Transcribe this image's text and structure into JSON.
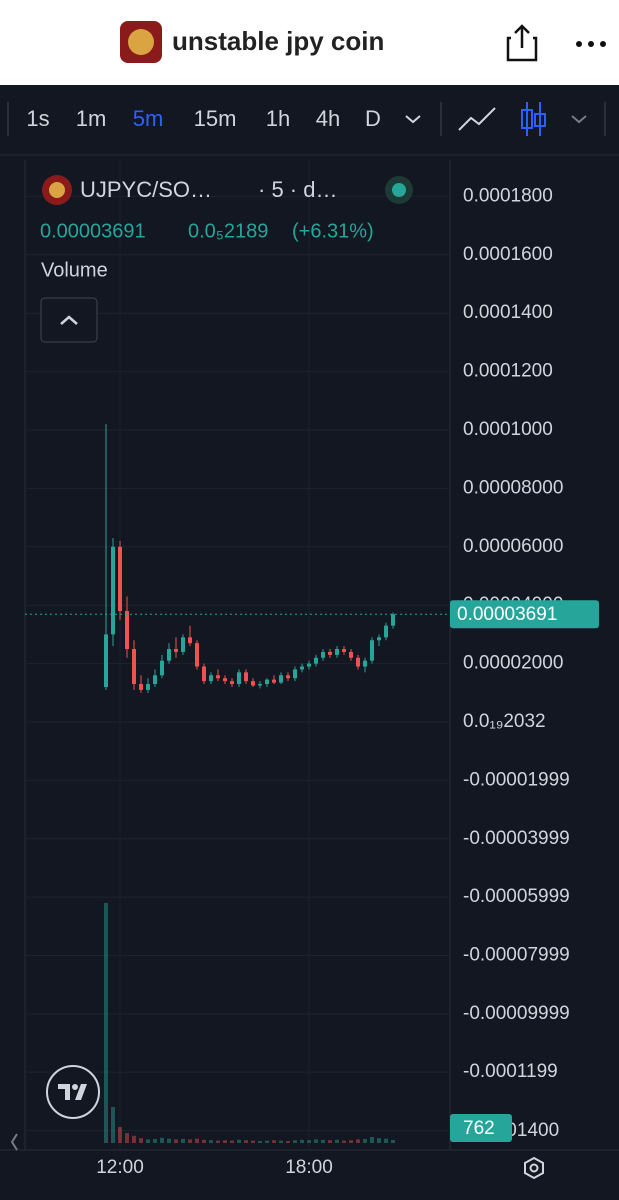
{
  "header": {
    "title": "unstable jpy coin"
  },
  "toolbar": {
    "intervals": [
      "1s",
      "1m",
      "5m",
      "15m",
      "1h",
      "4h",
      "D"
    ],
    "active": 2
  },
  "chart_data": {
    "type": "candlestick",
    "symbol": "UJPYC/SO…",
    "interval_label": "· 5 · d…",
    "change": "0.0₅2189",
    "change_pct": "(+6.31%)",
    "volume_title": "Volume",
    "last_price": 3.691e-05,
    "up_color": "#26a69a",
    "down_color": "#ef5350",
    "open": [
      1.2e-05,
      3e-05,
      6e-05,
      3.8e-05,
      2.5e-05,
      1.3e-05,
      1.1e-05,
      1.3e-05,
      1.6e-05,
      2.1e-05,
      2.5e-05,
      2.4e-05,
      2.9e-05,
      2.7e-05,
      1.9e-05,
      1.4e-05,
      1.6e-05,
      1.5e-05,
      1.4e-05,
      1.3e-05,
      1.7e-05,
      1.4e-05,
      1.25e-05,
      1.3e-05,
      1.45e-05,
      1.35e-05,
      1.6e-05,
      1.5e-05,
      1.8e-05,
      1.9e-05,
      2e-05,
      2.2e-05,
      2.4e-05,
      2.3e-05,
      2.5e-05,
      2.4e-05,
      2.2e-05,
      1.9e-05,
      2.1e-05,
      2.8e-05,
      2.9e-05,
      3.3e-05
    ],
    "high": [
      0.000102,
      6.3e-05,
      6.2e-05,
      4.3e-05,
      2.8e-05,
      1.6e-05,
      1.5e-05,
      1.8e-05,
      2.3e-05,
      2.7e-05,
      2.9e-05,
      3e-05,
      3.3e-05,
      2.8e-05,
      2e-05,
      1.7e-05,
      1.8e-05,
      1.6e-05,
      1.5e-05,
      1.8e-05,
      1.8e-05,
      1.5e-05,
      1.4e-05,
      1.5e-05,
      1.6e-05,
      1.7e-05,
      1.7e-05,
      1.9e-05,
      2e-05,
      2.1e-05,
      2.3e-05,
      2.5e-05,
      2.5e-05,
      2.6e-05,
      2.6e-05,
      2.5e-05,
      2.3e-05,
      2.2e-05,
      2.9e-05,
      3e-05,
      3.4e-05,
      3.75e-05
    ],
    "low": [
      1.1e-05,
      2.6e-05,
      3.5e-05,
      2.2e-05,
      1.1e-05,
      1e-05,
      1e-05,
      1.2e-05,
      1.5e-05,
      2e-05,
      2.2e-05,
      2.3e-05,
      2.6e-05,
      1.8e-05,
      1.3e-05,
      1.3e-05,
      1.4e-05,
      1.3e-05,
      1.2e-05,
      1.2e-05,
      1.3e-05,
      1.2e-05,
      1.15e-05,
      1.2e-05,
      1.3e-05,
      1.3e-05,
      1.4e-05,
      1.4e-05,
      1.7e-05,
      1.8e-05,
      1.9e-05,
      2.1e-05,
      2.2e-05,
      2.2e-05,
      2.3e-05,
      2.1e-05,
      1.8e-05,
      1.7e-05,
      2e-05,
      2.6e-05,
      2.8e-05,
      3.2e-05
    ],
    "close": [
      3e-05,
      6e-05,
      3.8e-05,
      2.5e-05,
      1.3e-05,
      1.1e-05,
      1.3e-05,
      1.6e-05,
      2.1e-05,
      2.5e-05,
      2.4e-05,
      2.9e-05,
      2.7e-05,
      1.9e-05,
      1.4e-05,
      1.6e-05,
      1.5e-05,
      1.4e-05,
      1.3e-05,
      1.7e-05,
      1.4e-05,
      1.25e-05,
      1.3e-05,
      1.45e-05,
      1.35e-05,
      1.6e-05,
      1.5e-05,
      1.8e-05,
      1.9e-05,
      2e-05,
      2.2e-05,
      2.4e-05,
      2.3e-05,
      2.5e-05,
      2.4e-05,
      2.2e-05,
      1.9e-05,
      2.1e-05,
      2.8e-05,
      2.9e-05,
      3.3e-05,
      3.691e-05
    ],
    "volume": [
      60000,
      9000,
      4000,
      2500,
      1800,
      1200,
      900,
      1000,
      1300,
      1100,
      900,
      1000,
      900,
      1100,
      800,
      700,
      600,
      700,
      600,
      800,
      700,
      600,
      500,
      600,
      700,
      600,
      500,
      700,
      800,
      700,
      900,
      800,
      700,
      800,
      600,
      700,
      900,
      1000,
      1500,
      1200,
      1100,
      762
    ],
    "xlim": [
      -11.57,
      49.14
    ],
    "xticks": [
      {
        "value": 2,
        "label": "12:00"
      },
      {
        "value": 29,
        "label": "18:00"
      }
    ],
    "ylim": [
      -0.00014658,
      0.00019247
    ],
    "yticks": [
      {
        "value": 0.00018,
        "label": "0.0001800"
      },
      {
        "value": 0.00016,
        "label": "0.0001600"
      },
      {
        "value": 0.00014,
        "label": "0.0001400"
      },
      {
        "value": 0.00012,
        "label": "0.0001200"
      },
      {
        "value": 0.0001,
        "label": "0.0001000"
      },
      {
        "value": 8e-05,
        "label": "0.00008000"
      },
      {
        "value": 6e-05,
        "label": "0.00006000"
      },
      {
        "value": 4e-05,
        "label": "0.00004000"
      },
      {
        "value": 2e-05,
        "label": "0.00002000"
      },
      {
        "value": 2.032e-20,
        "label": "0.0₁₉2032"
      },
      {
        "value": -1.999e-05,
        "label": "-0.00001999"
      },
      {
        "value": -3.999e-05,
        "label": "-0.00003999"
      },
      {
        "value": -5.999e-05,
        "label": "-0.00005999"
      },
      {
        "value": -7.999e-05,
        "label": "-0.00007999"
      },
      {
        "value": -9.999e-05,
        "label": "-0.00009999"
      },
      {
        "value": -0.0001199,
        "label": "-0.0001199"
      },
      {
        "value": -0.00014,
        "label": "-0.0001400"
      }
    ],
    "grid": true
  }
}
